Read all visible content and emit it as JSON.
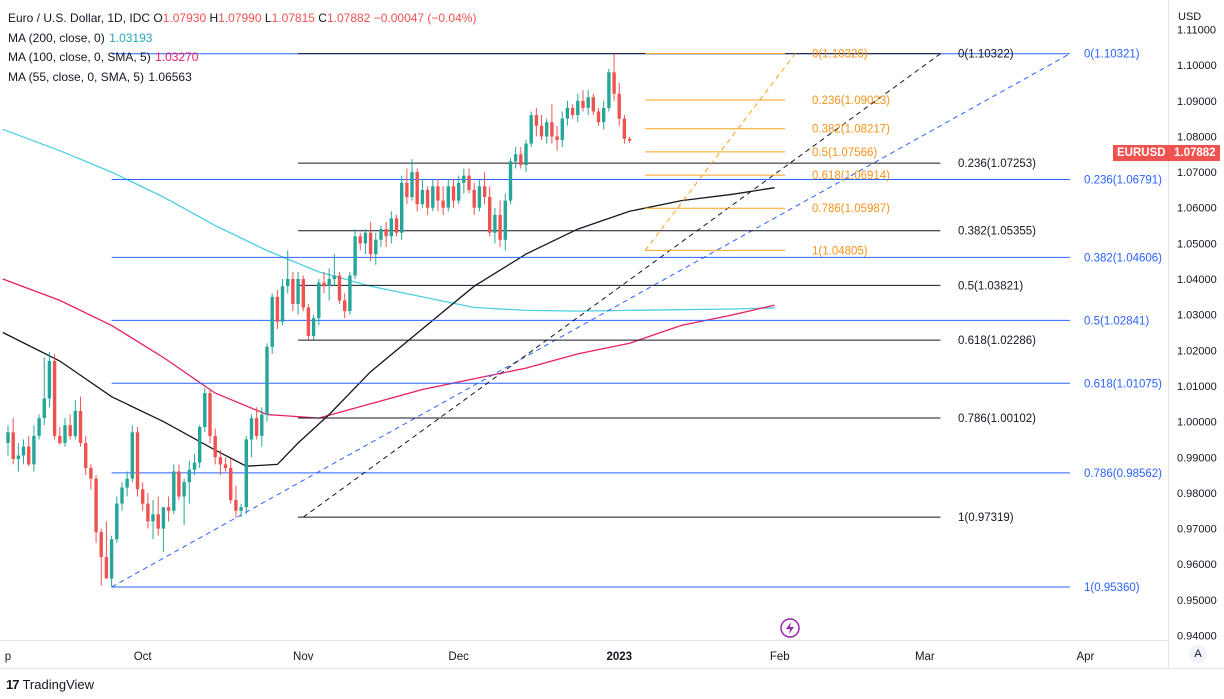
{
  "header": {
    "symbol": "Euro / U.S. Dollar, 1D, IDC",
    "open_label": "O",
    "open": "1.07930",
    "high_label": "H",
    "high": "1.07990",
    "low_label": "L",
    "low": "1.07815",
    "close_label": "C",
    "close": "1.07882",
    "change": "−0.00047 (−0.04%)"
  },
  "indicators": [
    {
      "label": "MA (200, close, 0)",
      "value": "1.03193",
      "color": "#26c6da"
    },
    {
      "label": "MA (100, close, 0, SMA, 5)",
      "value": "1.03270",
      "color": "#e91e63"
    },
    {
      "label": "MA (55, close, 0, SMA, 5)",
      "value": "1.06563",
      "color": "#131722"
    }
  ],
  "price_axis": {
    "currency": "USD"
  },
  "last_price_tags": {
    "symbol": "EURUSD",
    "price": "1.07882",
    "color": "#ef5350"
  },
  "footer": {
    "brand": "TradingView"
  },
  "auto_button": "A",
  "chart_data": {
    "type": "candlestick",
    "y_ticks": [
      "1.11000",
      "1.10000",
      "1.09000",
      "1.08000",
      "1.07000",
      "1.06000",
      "1.05000",
      "1.04000",
      "1.03000",
      "1.02000",
      "1.01000",
      "1.00000",
      "0.99000",
      "0.98000",
      "0.97000",
      "0.96000",
      "0.95000",
      "0.94000"
    ],
    "ylim": [
      0.937,
      1.1165
    ],
    "x_ticks": [
      {
        "label": "p",
        "day": 0
      },
      {
        "label": "Oct",
        "day": 26
      },
      {
        "label": "Nov",
        "day": 57
      },
      {
        "label": "Dec",
        "day": 87
      },
      {
        "label": "2023",
        "day": 118,
        "bold": true
      },
      {
        "label": "Feb",
        "day": 149
      },
      {
        "label": "Mar",
        "day": 177
      },
      {
        "label": "Apr",
        "day": 208
      }
    ],
    "xlim": [
      -1,
      235
    ],
    "candle_days_start": 0,
    "candles": [
      [
        0.994,
        0.999,
        0.9905,
        0.997
      ],
      [
        0.997,
        1.001,
        0.988,
        0.9895
      ],
      [
        0.9895,
        0.994,
        0.986,
        0.9905
      ],
      [
        0.9905,
        0.995,
        0.988,
        0.993
      ],
      [
        0.993,
        0.996,
        0.9875,
        0.988
      ],
      [
        0.988,
        0.999,
        0.986,
        0.996
      ],
      [
        0.996,
        1.002,
        0.995,
        1.001
      ],
      [
        1.001,
        1.018,
        0.999,
        1.0065
      ],
      [
        1.0065,
        1.0195,
        1.004,
        1.017
      ],
      [
        1.017,
        1.019,
        0.995,
        0.996
      ],
      [
        0.996,
        0.9985,
        0.9935,
        0.994
      ],
      [
        0.994,
        1.001,
        0.993,
        0.999
      ],
      [
        0.999,
        1.002,
        0.995,
        0.996
      ],
      [
        0.996,
        1.006,
        0.995,
        1.003
      ],
      [
        1.003,
        1.007,
        0.993,
        0.994
      ],
      [
        0.994,
        0.996,
        0.985,
        0.987
      ],
      [
        0.987,
        0.988,
        0.981,
        0.984
      ],
      [
        0.984,
        0.985,
        0.966,
        0.969
      ],
      [
        0.969,
        0.97,
        0.954,
        0.962
      ],
      [
        0.962,
        0.972,
        0.956,
        0.956
      ],
      [
        0.956,
        0.968,
        0.9536,
        0.967
      ],
      [
        0.967,
        0.979,
        0.966,
        0.977
      ],
      [
        0.977,
        0.983,
        0.975,
        0.9815
      ],
      [
        0.9815,
        0.986,
        0.979,
        0.984
      ],
      [
        0.984,
        0.999,
        0.983,
        0.997
      ],
      [
        0.997,
        0.9985,
        0.979,
        0.981
      ],
      [
        0.981,
        0.983,
        0.975,
        0.977
      ],
      [
        0.977,
        0.98,
        0.97,
        0.972
      ],
      [
        0.972,
        0.978,
        0.967,
        0.974
      ],
      [
        0.974,
        0.979,
        0.968,
        0.97
      ],
      [
        0.97,
        0.976,
        0.9635,
        0.976
      ],
      [
        0.976,
        0.979,
        0.972,
        0.975
      ],
      [
        0.975,
        0.988,
        0.974,
        0.986
      ],
      [
        0.986,
        0.988,
        0.978,
        0.979
      ],
      [
        0.979,
        0.984,
        0.971,
        0.983
      ],
      [
        0.983,
        0.989,
        0.977,
        0.9865
      ],
      [
        0.9865,
        0.991,
        0.985,
        0.9885
      ],
      [
        0.9885,
        0.999,
        0.987,
        0.9985
      ],
      [
        0.9985,
        1.0095,
        0.997,
        1.008
      ],
      [
        1.008,
        1.0093,
        0.994,
        0.996
      ],
      [
        0.996,
        0.998,
        0.988,
        0.99
      ],
      [
        0.99,
        0.992,
        0.985,
        0.988
      ],
      [
        0.988,
        0.99,
        0.986,
        0.987
      ],
      [
        0.987,
        0.9895,
        0.977,
        0.978
      ],
      [
        0.978,
        0.982,
        0.973,
        0.975
      ],
      [
        0.975,
        0.977,
        0.9732,
        0.976
      ],
      [
        0.976,
        0.996,
        0.974,
        0.995
      ],
      [
        0.995,
        1.002,
        0.99,
        1.001
      ],
      [
        1.001,
        1.004,
        0.995,
        0.996
      ],
      [
        0.996,
        1.004,
        0.993,
        1.002
      ],
      [
        1.002,
        1.022,
        1.0,
        1.021
      ],
      [
        1.021,
        1.036,
        1.019,
        1.035
      ],
      [
        1.035,
        1.037,
        1.026,
        1.028
      ],
      [
        1.028,
        1.04,
        1.027,
        1.038
      ],
      [
        1.038,
        1.048,
        1.036,
        1.04
      ],
      [
        1.04,
        1.042,
        1.031,
        1.033
      ],
      [
        1.033,
        1.042,
        1.03,
        1.04
      ],
      [
        1.04,
        1.041,
        1.031,
        1.032
      ],
      [
        1.032,
        1.033,
        1.023,
        1.024
      ],
      [
        1.024,
        1.03,
        1.023,
        1.029
      ],
      [
        1.029,
        1.04,
        1.027,
        1.039
      ],
      [
        1.039,
        1.042,
        1.036,
        1.038
      ],
      [
        1.038,
        1.043,
        1.034,
        1.04
      ],
      [
        1.04,
        1.047,
        1.038,
        1.041
      ],
      [
        1.041,
        1.042,
        1.033,
        1.034
      ],
      [
        1.034,
        1.036,
        1.029,
        1.031
      ],
      [
        1.031,
        1.042,
        1.03,
        1.041
      ],
      [
        1.041,
        1.054,
        1.04,
        1.052
      ],
      [
        1.052,
        1.053,
        1.048,
        1.05
      ],
      [
        1.05,
        1.054,
        1.047,
        1.053
      ],
      [
        1.053,
        1.056,
        1.045,
        1.047
      ],
      [
        1.047,
        1.053,
        1.044,
        1.051
      ],
      [
        1.051,
        1.055,
        1.049,
        1.054
      ],
      [
        1.054,
        1.056,
        1.049,
        1.052
      ],
      [
        1.052,
        1.059,
        1.05,
        1.057
      ],
      [
        1.057,
        1.058,
        1.052,
        1.053
      ],
      [
        1.053,
        1.069,
        1.051,
        1.067
      ],
      [
        1.067,
        1.071,
        1.061,
        1.063
      ],
      [
        1.063,
        1.0736,
        1.062,
        1.07
      ],
      [
        1.07,
        1.071,
        1.059,
        1.061
      ],
      [
        1.061,
        1.068,
        1.06,
        1.065
      ],
      [
        1.065,
        1.066,
        1.058,
        1.06
      ],
      [
        1.06,
        1.068,
        1.059,
        1.066
      ],
      [
        1.066,
        1.068,
        1.059,
        1.062
      ],
      [
        1.062,
        1.066,
        1.058,
        1.06
      ],
      [
        1.06,
        1.068,
        1.059,
        1.066
      ],
      [
        1.066,
        1.068,
        1.06,
        1.062
      ],
      [
        1.062,
        1.069,
        1.061,
        1.067
      ],
      [
        1.067,
        1.071,
        1.064,
        1.069
      ],
      [
        1.069,
        1.071,
        1.064,
        1.065
      ],
      [
        1.065,
        1.067,
        1.058,
        1.06
      ],
      [
        1.06,
        1.068,
        1.059,
        1.066
      ],
      [
        1.066,
        1.07,
        1.061,
        1.063
      ],
      [
        1.063,
        1.066,
        1.052,
        1.053
      ],
      [
        1.053,
        1.06,
        1.05,
        1.058
      ],
      [
        1.058,
        1.062,
        1.049,
        1.051
      ],
      [
        1.051,
        1.064,
        1.048,
        1.062
      ],
      [
        1.062,
        1.074,
        1.061,
        1.073
      ],
      [
        1.073,
        1.077,
        1.071,
        1.075
      ],
      [
        1.075,
        1.077,
        1.071,
        1.072
      ],
      [
        1.072,
        1.079,
        1.07,
        1.078
      ],
      [
        1.078,
        1.087,
        1.077,
        1.086
      ],
      [
        1.086,
        1.088,
        1.08,
        1.083
      ],
      [
        1.083,
        1.086,
        1.079,
        1.08
      ],
      [
        1.08,
        1.085,
        1.078,
        1.084
      ],
      [
        1.084,
        1.089,
        1.078,
        1.08
      ],
      [
        1.08,
        1.083,
        1.076,
        1.079
      ],
      [
        1.079,
        1.087,
        1.077,
        1.085
      ],
      [
        1.085,
        1.09,
        1.083,
        1.088
      ],
      [
        1.088,
        1.089,
        1.085,
        1.086
      ],
      [
        1.086,
        1.092,
        1.084,
        1.09
      ],
      [
        1.09,
        1.093,
        1.087,
        1.088
      ],
      [
        1.088,
        1.093,
        1.086,
        1.091
      ],
      [
        1.091,
        1.092,
        1.086,
        1.087
      ],
      [
        1.087,
        1.088,
        1.083,
        1.084
      ],
      [
        1.084,
        1.09,
        1.082,
        1.088
      ],
      [
        1.088,
        1.099,
        1.087,
        1.098
      ],
      [
        1.098,
        1.1032,
        1.09,
        1.092
      ],
      [
        1.092,
        1.095,
        1.083,
        1.085
      ],
      [
        1.085,
        1.086,
        1.078,
        1.0793
      ],
      [
        1.0793,
        1.0799,
        1.0782,
        1.0788
      ]
    ],
    "ma55": [
      [
        -1,
        1.025
      ],
      [
        10,
        1.017
      ],
      [
        20,
        1.007
      ],
      [
        30,
        1.0
      ],
      [
        40,
        0.992
      ],
      [
        46,
        0.9875
      ],
      [
        52,
        0.988
      ],
      [
        56,
        0.994
      ],
      [
        62,
        1.002
      ],
      [
        70,
        1.014
      ],
      [
        80,
        1.026
      ],
      [
        90,
        1.038
      ],
      [
        100,
        1.047
      ],
      [
        110,
        1.054
      ],
      [
        120,
        1.059
      ],
      [
        130,
        1.062
      ],
      [
        140,
        1.0638
      ],
      [
        148,
        1.06563
      ]
    ],
    "ma100": [
      [
        -1,
        1.04
      ],
      [
        10,
        1.034
      ],
      [
        20,
        1.027
      ],
      [
        30,
        1.018
      ],
      [
        40,
        1.008
      ],
      [
        50,
        1.002
      ],
      [
        60,
        1.001
      ],
      [
        70,
        1.005
      ],
      [
        80,
        1.009
      ],
      [
        90,
        1.012
      ],
      [
        100,
        1.015
      ],
      [
        110,
        1.019
      ],
      [
        120,
        1.022
      ],
      [
        130,
        1.027
      ],
      [
        140,
        1.03
      ],
      [
        148,
        1.0327
      ]
    ],
    "ma200": [
      [
        -1,
        1.082
      ],
      [
        10,
        1.076
      ],
      [
        20,
        1.07
      ],
      [
        30,
        1.063
      ],
      [
        40,
        1.055
      ],
      [
        50,
        1.048
      ],
      [
        60,
        1.042
      ],
      [
        70,
        1.038
      ],
      [
        80,
        1.035
      ],
      [
        90,
        1.032
      ],
      [
        100,
        1.0312
      ],
      [
        110,
        1.031
      ],
      [
        120,
        1.0312
      ],
      [
        130,
        1.0314
      ],
      [
        140,
        1.0316
      ],
      [
        148,
        1.03193
      ]
    ],
    "fib_blue": {
      "color": "#2962ff",
      "x_from": 20,
      "x_to": 205,
      "levels": [
        {
          "price": 1.10321,
          "label": "0(1.10321)"
        },
        {
          "price": 1.06791,
          "label": "0.236(1.06791)"
        },
        {
          "price": 1.04606,
          "label": "0.382(1.04606)"
        },
        {
          "price": 1.02841,
          "label": "0.5(1.02841)"
        },
        {
          "price": 1.01075,
          "label": "0.618(1.01075)"
        },
        {
          "price": 0.98562,
          "label": "0.786(0.98562)"
        },
        {
          "price": 0.9536,
          "label": "1(0.95360)"
        }
      ],
      "trend": [
        [
          20,
          0.9536
        ],
        [
          205,
          1.1032
        ]
      ]
    },
    "fib_black": {
      "color": "#131722",
      "x_from": 56,
      "x_to": 180,
      "levels": [
        {
          "price": 1.10322,
          "label": "0(1.10322)"
        },
        {
          "price": 1.07253,
          "label": "0.236(1.07253)"
        },
        {
          "price": 1.05355,
          "label": "0.382(1.05355)"
        },
        {
          "price": 1.03821,
          "label": "0.5(1.03821)"
        },
        {
          "price": 1.02286,
          "label": "0.618(1.02286)"
        },
        {
          "price": 1.00102,
          "label": "0.786(1.00102)"
        },
        {
          "price": 0.97319,
          "label": "1(0.97319)"
        }
      ],
      "trend": [
        [
          57,
          0.9732
        ],
        [
          180,
          1.1032
        ]
      ]
    },
    "fib_orange": {
      "color": "#f7a21b",
      "x_from": 123,
      "x_to": 150,
      "levels": [
        {
          "price": 1.10326,
          "label": "0(1.10326)"
        },
        {
          "price": 1.09023,
          "label": "0.236(1.09023)"
        },
        {
          "price": 1.08217,
          "label": "0.382(1.08217)"
        },
        {
          "price": 1.07566,
          "label": "0.5(1.07566)"
        },
        {
          "price": 1.06914,
          "label": "0.618(1.06914)"
        },
        {
          "price": 1.05987,
          "label": "0.786(1.05987)"
        },
        {
          "price": 1.04805,
          "label": "1(1.04805)"
        }
      ],
      "trend": [
        [
          123,
          1.048
        ],
        [
          152,
          1.1033
        ]
      ]
    }
  }
}
